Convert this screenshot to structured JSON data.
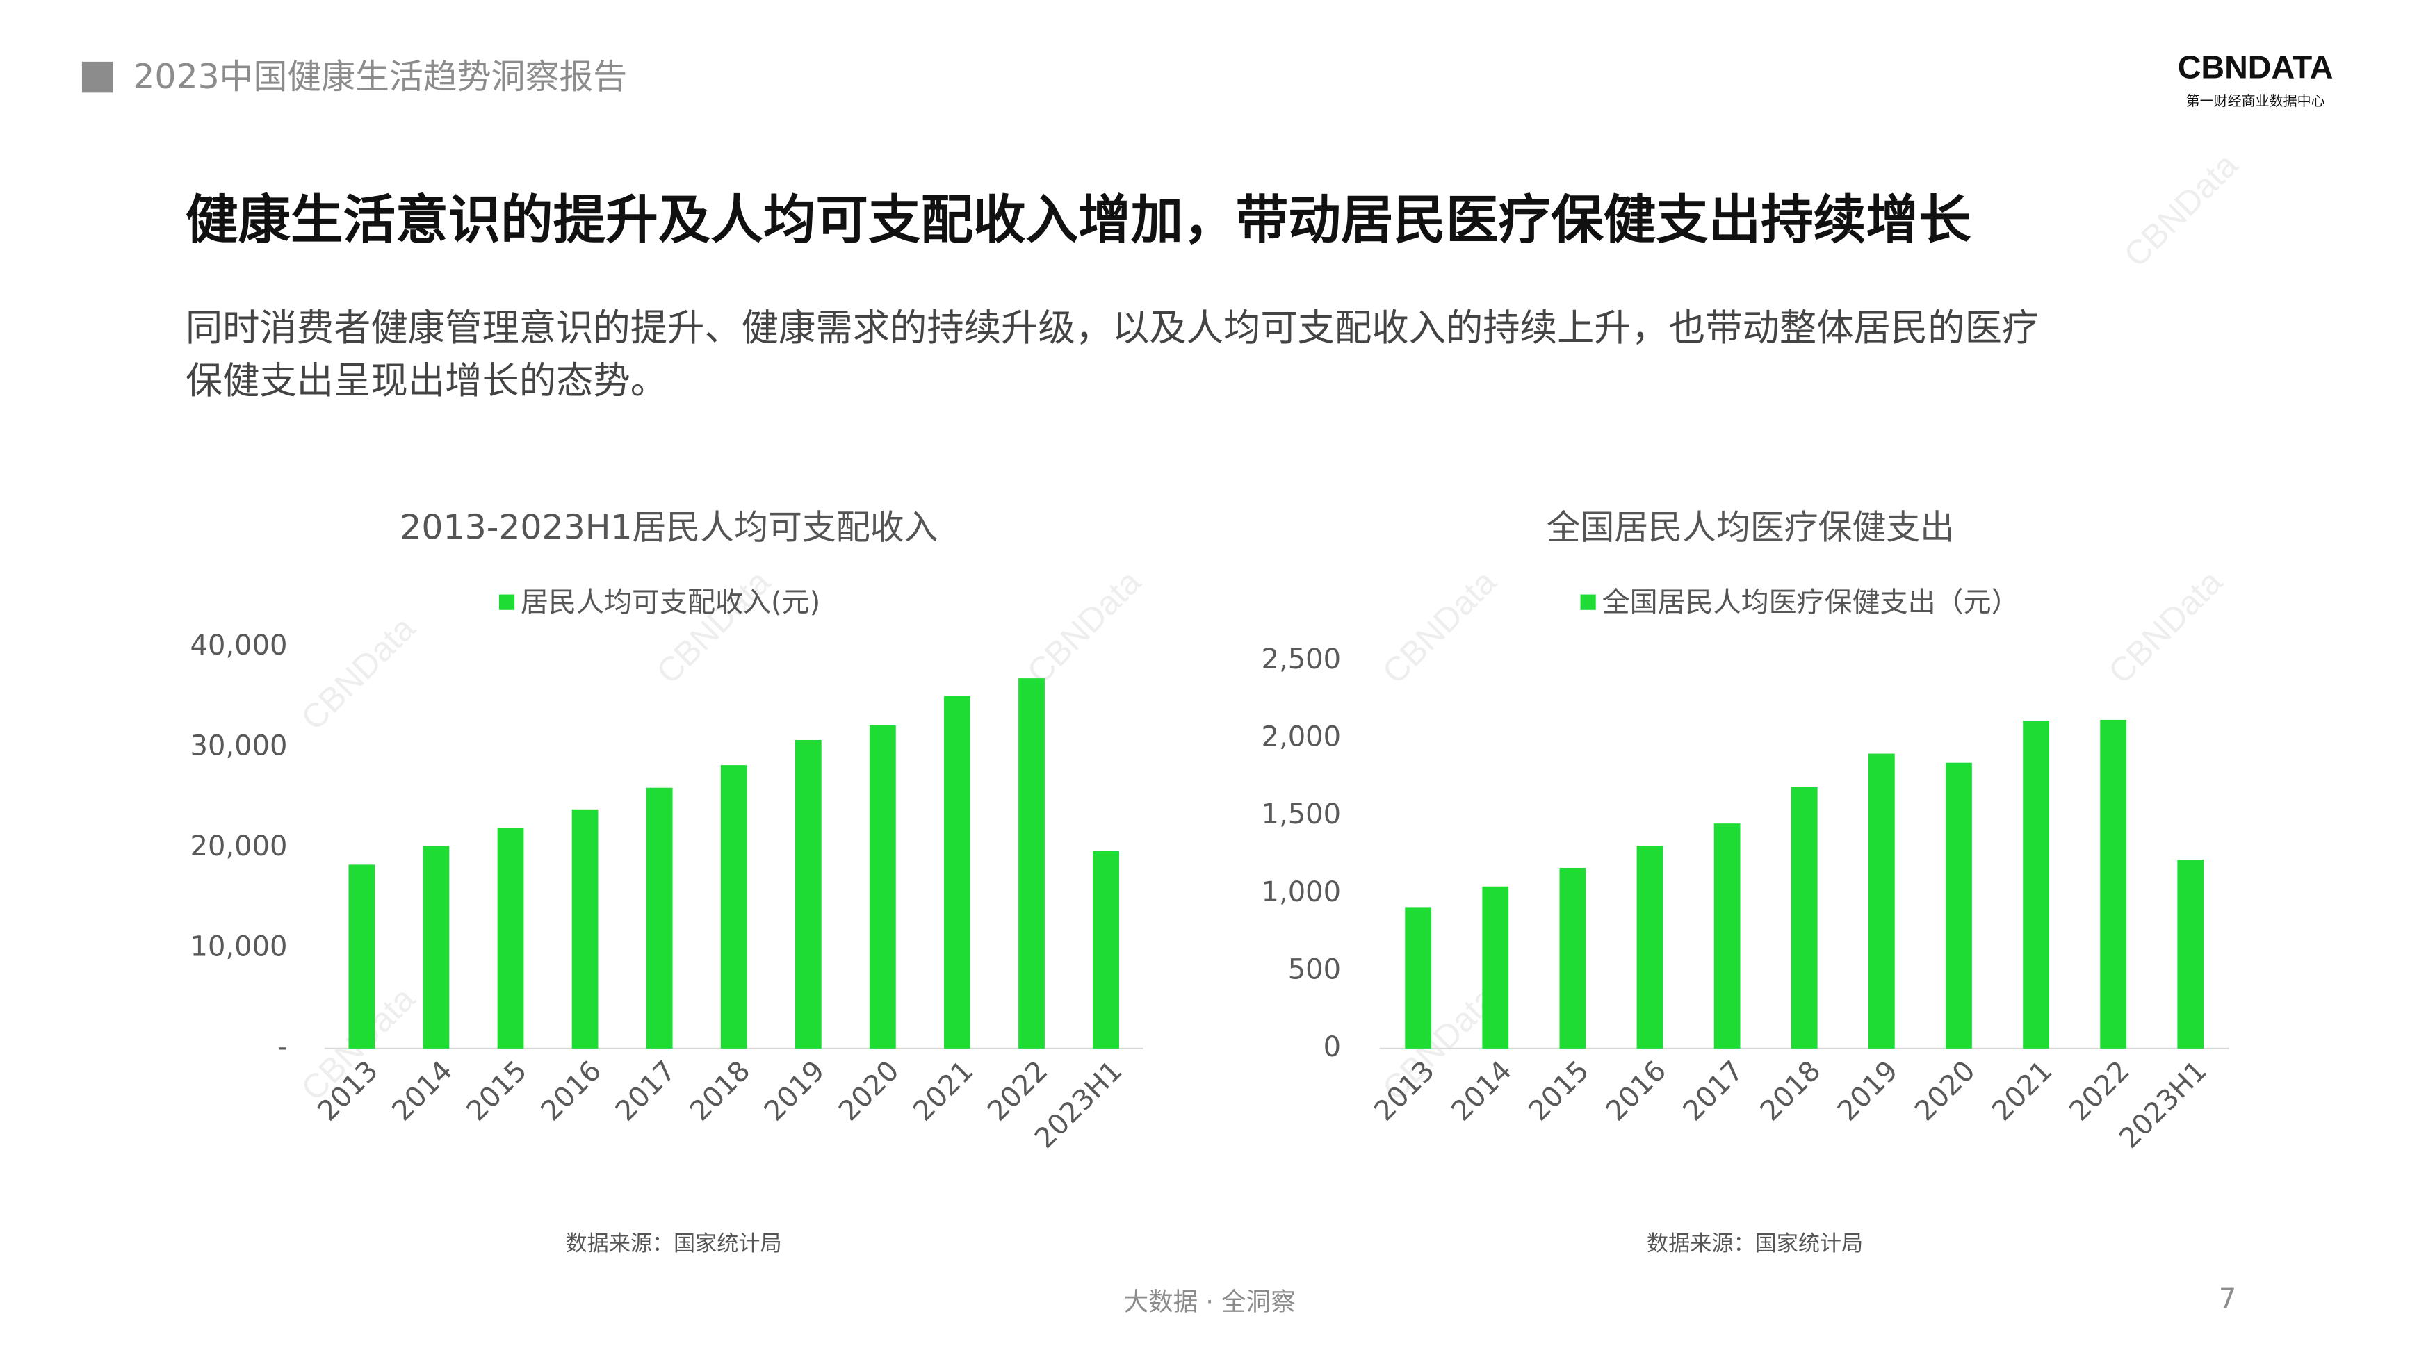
{
  "header": {
    "title": "2023中国健康生活趋势洞察报告",
    "logo": "CBNDATA",
    "logo_sub": "第一财经商业数据中心"
  },
  "headline": "健康生活意识的提升及人均可支配收入增加，带动居民医疗保健支出持续增长",
  "subtitle": [
    "同时消费者健康管理意识的提升、健康需求的持续升级，以及人均可支配收入的持续上升，也带动整体居民的医疗",
    "保健支出呈现出增长的态势。"
  ],
  "watermark": "CBNData",
  "chart_data": [
    {
      "type": "bar",
      "title": "2013-2023H1居民人均可支配收入",
      "categories": [
        "2013",
        "2014",
        "2015",
        "2016",
        "2017",
        "2018",
        "2019",
        "2020",
        "2021",
        "2022",
        "2023H1"
      ],
      "series": [
        {
          "name": "居民人均可支配收入(元)",
          "color": "#1edc34",
          "values": [
            18311,
            20167,
            21966,
            23821,
            25974,
            28228,
            30733,
            32189,
            35128,
            36883,
            19672
          ]
        }
      ],
      "ylim": [
        0,
        40000
      ],
      "yticks": [
        {
          "value": 0,
          "label": "-"
        },
        {
          "value": 10000,
          "label": "10,000"
        },
        {
          "value": 20000,
          "label": "20,000"
        },
        {
          "value": 30000,
          "label": "30,000"
        },
        {
          "value": 40000,
          "label": "40,000"
        }
      ],
      "source": "数据来源：国家统计局"
    },
    {
      "type": "bar",
      "title": "全国居民人均医疗保健支出",
      "categories": [
        "2013",
        "2014",
        "2015",
        "2016",
        "2017",
        "2018",
        "2019",
        "2020",
        "2021",
        "2022",
        "2023H1"
      ],
      "series": [
        {
          "name": "全国居民人均医疗保健支出（元）",
          "color": "#1edc34",
          "values": [
            912,
            1045,
            1165,
            1307,
            1451,
            1685,
            1902,
            1843,
            2115,
            2120,
            1218
          ]
        }
      ],
      "ylim": [
        0,
        2500
      ],
      "yticks": [
        0,
        500,
        {
          "value": 1000,
          "label": "1,000"
        },
        {
          "value": 1500,
          "label": "1,500"
        },
        {
          "value": 2000,
          "label": "2,000"
        },
        {
          "value": 2500,
          "label": "2,500"
        }
      ],
      "source": "数据来源：国家统计局"
    }
  ],
  "footer": "大数据 · 全洞察",
  "page_number": "7"
}
